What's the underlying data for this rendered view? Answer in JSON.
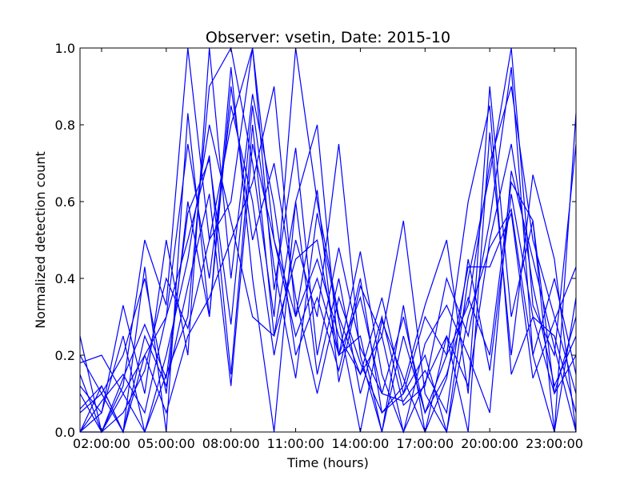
{
  "chart_data": {
    "type": "line",
    "title": "Observer: vsetin, Date: 2015-10",
    "xlabel": "Time (hours)",
    "ylabel": "Normalized detection count",
    "xlim": [
      1,
      24
    ],
    "ylim": [
      0,
      1
    ],
    "x_ticks": [
      2,
      5,
      8,
      11,
      14,
      17,
      20,
      23
    ],
    "x_tick_labels": [
      "02:00:00",
      "05:00:00",
      "08:00:00",
      "11:00:00",
      "14:00:00",
      "17:00:00",
      "20:00:00",
      "23:00:00"
    ],
    "y_ticks": [
      0,
      0.2,
      0.4,
      0.6,
      0.8,
      1
    ],
    "y_tick_labels": [
      "0.0",
      "0.2",
      "0.4",
      "0.6",
      "0.8",
      "1.0"
    ],
    "grid": false,
    "legend": "none",
    "line_color": "#0000ff",
    "x": [
      1,
      2,
      3,
      4,
      5,
      6,
      7,
      8,
      9,
      10,
      11,
      12,
      13,
      14,
      15,
      16,
      17,
      18,
      19,
      20,
      21,
      22,
      23,
      24
    ],
    "series": [
      {
        "values": [
          0.25,
          0.0,
          0.12,
          0.5,
          0.33,
          1.0,
          0.5,
          0.6,
          1.0,
          0.5,
          0.25,
          0.4,
          0.2,
          0.35,
          0.1,
          0.3,
          0.05,
          0.2,
          0.33,
          0.7,
          0.9,
          0.5,
          0.3,
          0.1
        ]
      },
      {
        "values": [
          0.18,
          0.2,
          0.1,
          0.0,
          0.15,
          0.3,
          0.9,
          1.0,
          0.7,
          0.3,
          1.0,
          0.6,
          0.3,
          0.15,
          0.25,
          0.55,
          0.1,
          0.0,
          0.4,
          0.67,
          1.0,
          0.33,
          0.2,
          0.75
        ]
      },
      {
        "values": [
          0.0,
          0.12,
          0.0,
          0.43,
          0.0,
          0.83,
          0.3,
          0.95,
          0.4,
          0.0,
          0.6,
          0.8,
          0.2,
          0.25,
          0.0,
          0.33,
          0.0,
          0.25,
          0.0,
          0.78,
          0.2,
          0.67,
          0.45,
          0.0
        ]
      },
      {
        "values": [
          0.12,
          0.05,
          0.33,
          0.1,
          0.5,
          0.2,
          1.0,
          0.4,
          0.88,
          0.59,
          0.2,
          0.35,
          0.16,
          0.4,
          0.05,
          0.12,
          0.33,
          0.5,
          0.1,
          0.9,
          0.3,
          0.55,
          0.0,
          0.83
        ]
      },
      {
        "values": [
          0.05,
          0.1,
          0.0,
          0.2,
          0.3,
          0.5,
          0.72,
          0.15,
          0.8,
          0.25,
          0.45,
          0.5,
          0.2,
          0.47,
          0.15,
          0.0,
          0.23,
          0.33,
          0.2,
          0.05,
          0.68,
          0.45,
          0.22,
          0.0
        ]
      },
      {
        "values": [
          0.0,
          0.0,
          0.14,
          0.28,
          0.14,
          0.57,
          0.71,
          0.28,
          0.85,
          0.43,
          0.14,
          0.57,
          0.29,
          0.0,
          0.29,
          0.14,
          0.0,
          0.14,
          0.43,
          0.43,
          0.57,
          0.14,
          0.29,
          0.43
        ]
      },
      {
        "values": [
          0.2,
          0.1,
          0.2,
          0.4,
          0.1,
          0.6,
          0.3,
          0.9,
          0.5,
          0.7,
          0.35,
          0.1,
          0.35,
          0.18,
          0.05,
          0.1,
          0.3,
          0.2,
          0.6,
          0.85,
          0.15,
          0.3,
          0.1,
          0.2
        ]
      },
      {
        "values": [
          0.0,
          0.05,
          0.25,
          0.0,
          0.2,
          0.45,
          0.8,
          0.55,
          0.3,
          0.25,
          0.6,
          0.15,
          0.4,
          0.1,
          0.3,
          0.07,
          0.12,
          0.4,
          0.25,
          0.55,
          0.95,
          0.2,
          0.0,
          0.35
        ]
      },
      {
        "values": [
          0.1,
          0.0,
          0.05,
          0.16,
          0.4,
          0.27,
          0.5,
          0.8,
          1.0,
          0.37,
          0.74,
          0.2,
          0.48,
          0.22,
          0.1,
          0.08,
          0.16,
          0.05,
          0.45,
          0.16,
          0.62,
          0.3,
          0.25,
          0.05
        ]
      },
      {
        "values": [
          0.06,
          0.12,
          0.0,
          0.25,
          0.12,
          0.38,
          0.62,
          0.12,
          0.75,
          0.5,
          0.3,
          0.63,
          0.13,
          0.38,
          0.25,
          0.0,
          0.13,
          0.25,
          0.12,
          0.5,
          0.75,
          0.38,
          0.12,
          0.25
        ]
      },
      {
        "values": [
          0.0,
          0.08,
          0.15,
          0.05,
          0.3,
          0.75,
          0.4,
          0.85,
          0.6,
          0.2,
          0.5,
          0.3,
          0.75,
          0.2,
          0.0,
          0.25,
          0.05,
          0.15,
          0.35,
          0.2,
          0.65,
          0.55,
          0.1,
          0.3
        ]
      },
      {
        "values": [
          0.15,
          0.0,
          0.1,
          0.2,
          0.05,
          0.25,
          0.35,
          0.5,
          0.65,
          0.9,
          0.3,
          0.45,
          0.25,
          0.15,
          0.35,
          0.1,
          0.2,
          0.0,
          0.3,
          0.48,
          0.58,
          0.2,
          0.4,
          0.15
        ]
      }
    ]
  }
}
